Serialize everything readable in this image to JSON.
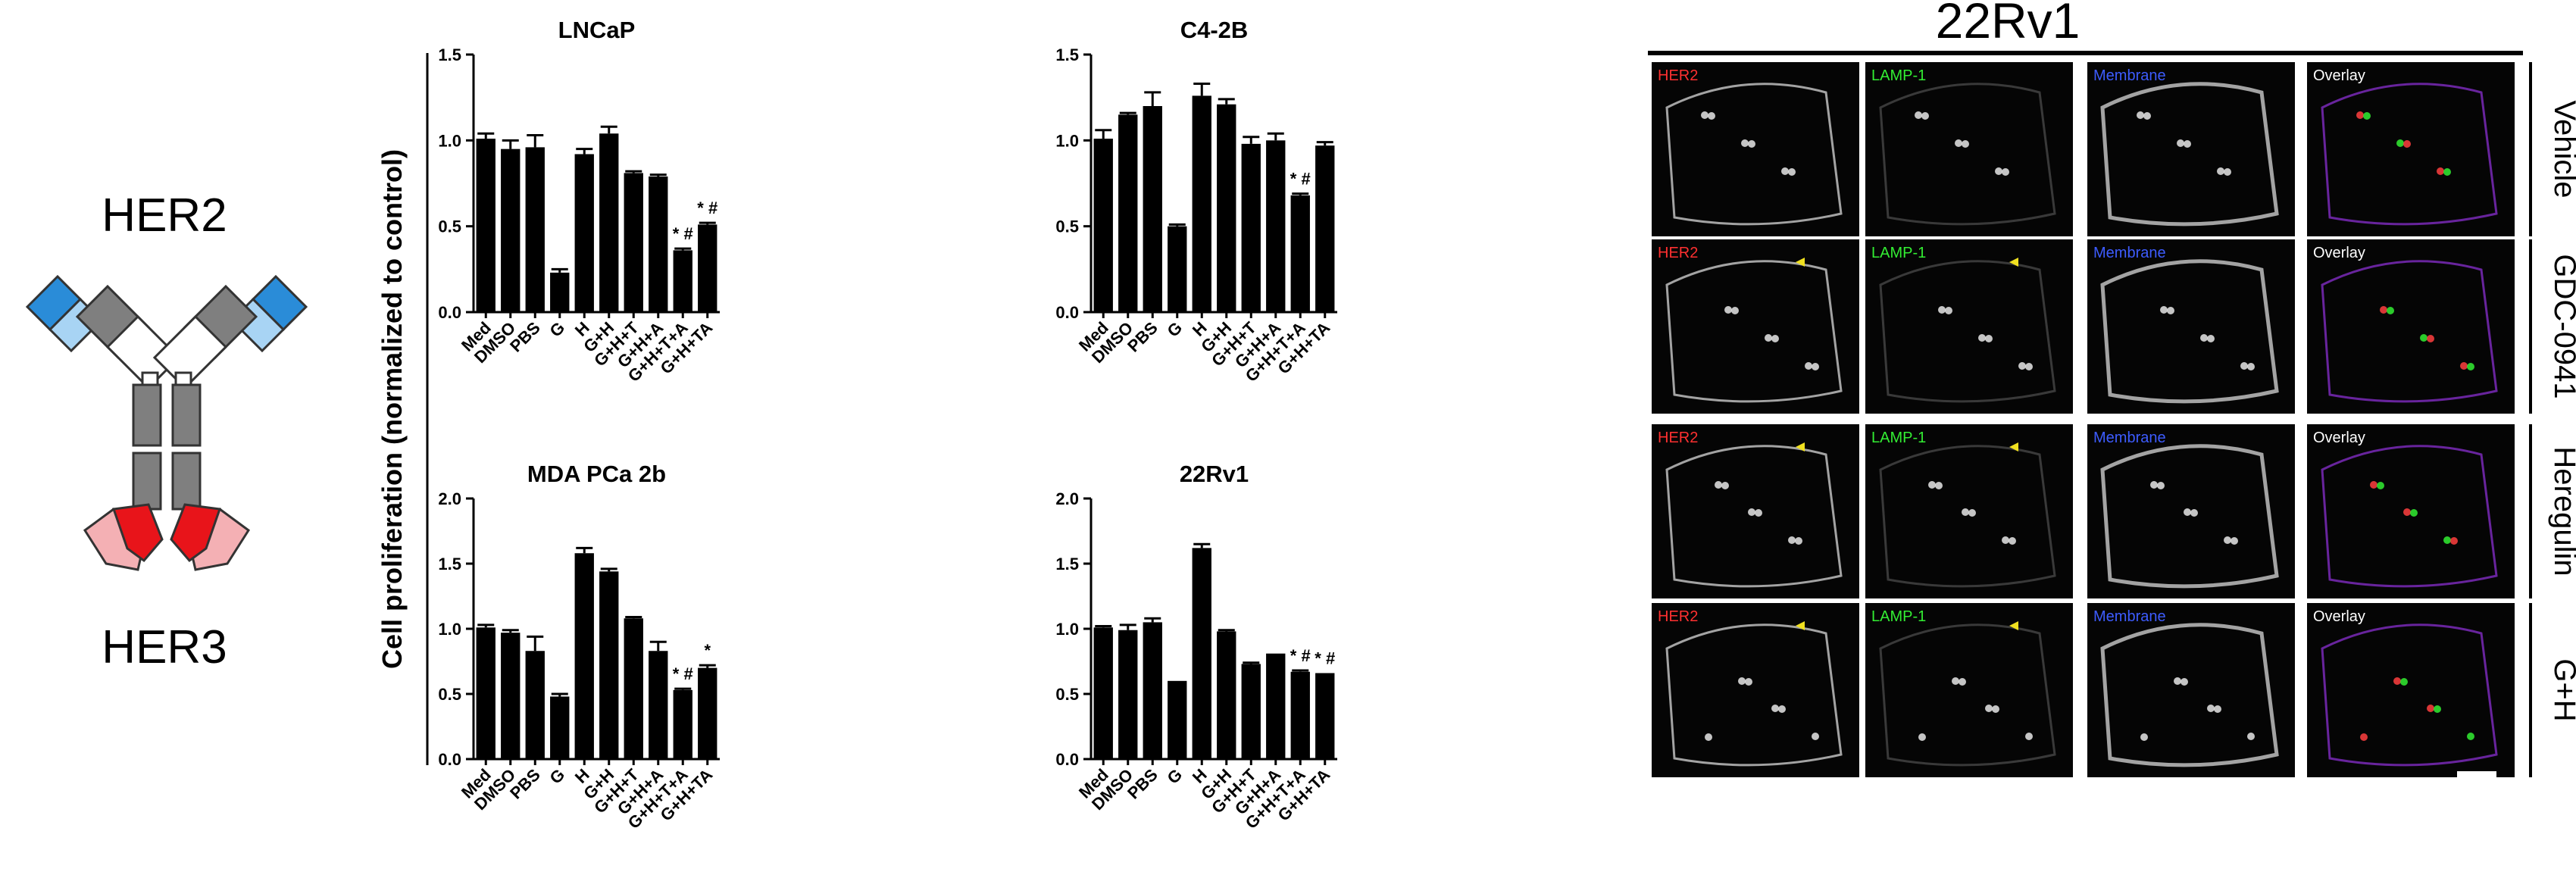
{
  "diagram": {
    "top_label": "HER2",
    "bottom_label": "HER3"
  },
  "y_axis_label": "Cell proliferation (normalized to control)",
  "chart_data": [
    {
      "type": "bar",
      "title": "LNCaP",
      "categories": [
        "Med",
        "DMSO",
        "PBS",
        "G",
        "H",
        "G+H",
        "G+H+T",
        "G+H+A",
        "G+H+T+A",
        "G+H+TA"
      ],
      "values": [
        1.01,
        0.95,
        0.96,
        0.23,
        0.92,
        1.04,
        0.81,
        0.79,
        0.36,
        0.51
      ],
      "errors": [
        0.03,
        0.05,
        0.07,
        0.02,
        0.03,
        0.04,
        0.01,
        0.01,
        0.01,
        0.01
      ],
      "annotations": [
        "",
        "",
        "",
        "",
        "",
        "",
        "",
        "",
        "* #",
        "* #"
      ],
      "ylim": [
        0,
        1.5
      ],
      "yticks": [
        "0.0",
        "0.5",
        "1.0",
        "1.5"
      ],
      "xlabel": "",
      "ylabel": ""
    },
    {
      "type": "bar",
      "title": "C4-2B",
      "categories": [
        "Med",
        "DMSO",
        "PBS",
        "G",
        "H",
        "G+H",
        "G+H+T",
        "G+H+A",
        "G+H+T+A",
        "G+H+TA"
      ],
      "values": [
        1.01,
        1.15,
        1.2,
        0.5,
        1.26,
        1.21,
        0.98,
        1.0,
        0.68,
        0.97
      ],
      "errors": [
        0.05,
        0.01,
        0.08,
        0.01,
        0.07,
        0.03,
        0.04,
        0.04,
        0.01,
        0.02
      ],
      "annotations": [
        "",
        "",
        "",
        "",
        "",
        "",
        "",
        "",
        "* #",
        ""
      ],
      "ylim": [
        0,
        1.5
      ],
      "yticks": [
        "0.0",
        "0.5",
        "1.0",
        "1.5"
      ],
      "xlabel": "",
      "ylabel": ""
    },
    {
      "type": "bar",
      "title": "MDA PCa 2b",
      "categories": [
        "Med",
        "DMSO",
        "PBS",
        "G",
        "H",
        "G+H",
        "G+H+T",
        "G+H+A",
        "G+H+T+A",
        "G+H+TA"
      ],
      "values": [
        1.01,
        0.97,
        0.83,
        0.48,
        1.58,
        1.44,
        1.08,
        0.83,
        0.53,
        0.7
      ],
      "errors": [
        0.02,
        0.02,
        0.11,
        0.02,
        0.04,
        0.02,
        0.01,
        0.07,
        0.01,
        0.02
      ],
      "annotations": [
        "",
        "",
        "",
        "",
        "",
        "",
        "",
        "",
        "* #",
        "*"
      ],
      "ylim": [
        0,
        2.0
      ],
      "yticks": [
        "0.0",
        "0.5",
        "1.0",
        "1.5",
        "2.0"
      ],
      "xlabel": "",
      "ylabel": ""
    },
    {
      "type": "bar",
      "title": "22Rv1",
      "categories": [
        "Med",
        "DMSO",
        "PBS",
        "G",
        "H",
        "G+H",
        "G+H+T",
        "G+H+A",
        "G+H+T+A",
        "G+H+TA"
      ],
      "values": [
        1.01,
        0.99,
        1.05,
        0.6,
        1.62,
        0.98,
        0.73,
        0.81,
        0.67,
        0.66
      ],
      "errors": [
        0.01,
        0.04,
        0.03,
        0.0,
        0.03,
        0.01,
        0.01,
        0.0,
        0.01,
        0.0
      ],
      "annotations": [
        "",
        "",
        "",
        "",
        "",
        "",
        "",
        "",
        "* #",
        "* #"
      ],
      "ylim": [
        0,
        2.0
      ],
      "yticks": [
        "0.0",
        "0.5",
        "1.0",
        "1.5",
        "2.0"
      ],
      "xlabel": "",
      "ylabel": ""
    }
  ],
  "microscopy": {
    "title": "22Rv1",
    "columns": [
      {
        "label": "HER2",
        "color": "#ff3030"
      },
      {
        "label": "LAMP-1",
        "color": "#33ee33"
      },
      {
        "label": "Membrane",
        "color": "#3d5cff"
      },
      {
        "label": "Overlay",
        "color": "#ffffff"
      }
    ],
    "rows": [
      "Vehicle",
      "GDC-0941",
      "Heregulin",
      "G+H"
    ]
  },
  "colors": {
    "bar": "#000000",
    "her2_dark": "#2a8cd8",
    "her2_light": "#a8d4f4",
    "her3_dark": "#e8141a",
    "her3_light": "#f4b0b4",
    "domain": "#7f7f7f"
  }
}
